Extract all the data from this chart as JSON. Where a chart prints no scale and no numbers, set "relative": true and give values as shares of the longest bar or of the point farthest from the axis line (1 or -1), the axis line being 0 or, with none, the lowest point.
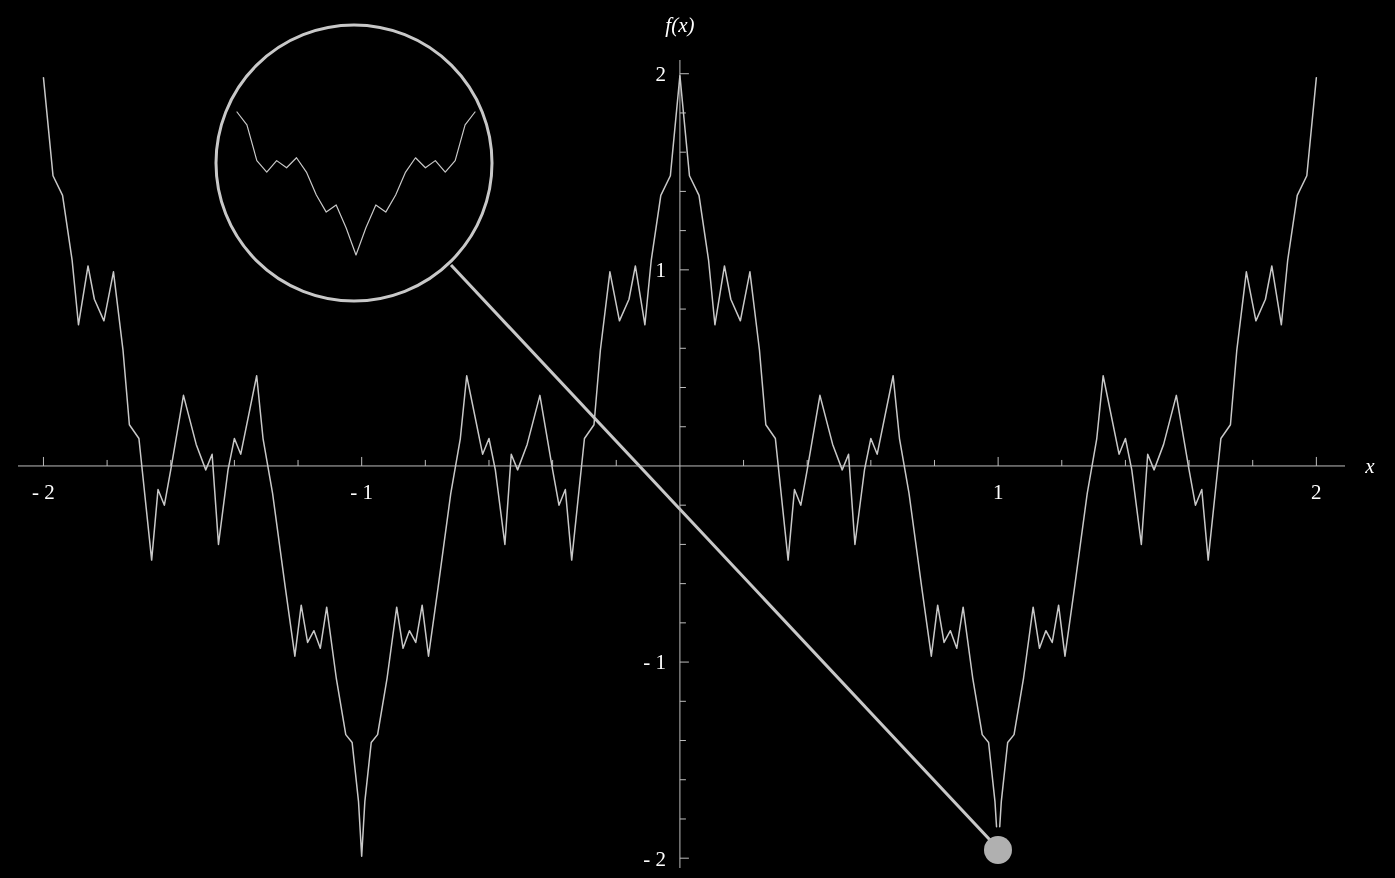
{
  "chart_data": [
    {
      "type": "line",
      "xlabel": "x",
      "ylabel": "f(x)",
      "xlim": [
        -2.08,
        2.09
      ],
      "ylim": [
        -2.05,
        2.07
      ],
      "xticks": [
        {
          "value": -2,
          "label": "- 2"
        },
        {
          "value": -1.8,
          "label": null
        },
        {
          "value": -1.6,
          "label": null
        },
        {
          "value": -1.4,
          "label": null
        },
        {
          "value": -1.2,
          "label": null
        },
        {
          "value": -1,
          "label": "- 1"
        },
        {
          "value": -0.8,
          "label": null
        },
        {
          "value": -0.6,
          "label": null
        },
        {
          "value": -0.4,
          "label": null
        },
        {
          "value": -0.2,
          "label": null
        },
        {
          "value": 0.2,
          "label": null
        },
        {
          "value": 0.4,
          "label": null
        },
        {
          "value": 0.6,
          "label": null
        },
        {
          "value": 0.8,
          "label": null
        },
        1,
        {
          "value": 1.2,
          "label": null
        },
        {
          "value": 1.4,
          "label": null
        },
        {
          "value": 1.6,
          "label": null
        },
        {
          "value": 1.8,
          "label": null
        },
        2
      ],
      "yticks": [
        {
          "value": -2,
          "label": "- 2"
        },
        {
          "value": -1.8,
          "label": null
        },
        {
          "value": -1.6,
          "label": null
        },
        {
          "value": -1.4,
          "label": null
        },
        {
          "value": -1.2,
          "label": null
        },
        {
          "value": -1,
          "label": "- 1"
        },
        {
          "value": -0.8,
          "label": null
        },
        {
          "value": -0.6,
          "label": null
        },
        {
          "value": -0.4,
          "label": null
        },
        {
          "value": -0.2,
          "label": null
        },
        {
          "value": 0.2,
          "label": null
        },
        {
          "value": 0.4,
          "label": null
        },
        {
          "value": 0.6,
          "label": null
        },
        {
          "value": 0.8,
          "label": null
        },
        1,
        {
          "value": 1.2,
          "label": null
        },
        {
          "value": 1.4,
          "label": null
        },
        {
          "value": 1.6,
          "label": null
        },
        {
          "value": 1.8,
          "label": null
        },
        2
      ],
      "series": [
        {
          "color": "#c8c8c8",
          "x": [
            -2,
            -1.97,
            -1.94,
            -1.91,
            -1.89,
            -1.86,
            -1.84,
            -1.81,
            -1.78,
            -1.75,
            -1.73,
            -1.7,
            -1.66,
            -1.64,
            -1.62,
            -1.6,
            -1.56,
            -1.52,
            -1.49,
            -1.47,
            -1.45,
            -1.42,
            -1.4,
            -1.38,
            -1.33,
            -1.31,
            -1.28,
            -1.24,
            -1.21,
            -1.19,
            -1.17,
            -1.15,
            -1.13,
            -1.11,
            -1.08,
            -1.05,
            -1.03,
            -1.01,
            -1.0,
            -0.99,
            -0.97,
            -0.95,
            -0.92,
            -0.89,
            -0.87,
            -0.85,
            -0.83,
            -0.81,
            -0.79,
            -0.76,
            -0.72,
            -0.69,
            -0.67,
            -0.62,
            -0.6,
            -0.58,
            -0.55,
            -0.53,
            -0.51,
            -0.48,
            -0.44,
            -0.4,
            -0.38,
            -0.36,
            -0.34,
            -0.3,
            -0.27,
            -0.25,
            -0.22,
            -0.19,
            -0.16,
            -0.14,
            -0.11,
            -0.09,
            -0.06,
            -0.03,
            0,
            0.03,
            0.06,
            0.09,
            0.11,
            0.14,
            0.16,
            0.19,
            0.22,
            0.25,
            0.27,
            0.3,
            0.34,
            0.36,
            0.38,
            0.4,
            0.44,
            0.48,
            0.51,
            0.53,
            0.55,
            0.58,
            0.6,
            0.62,
            0.67,
            0.69,
            0.72,
            0.76,
            0.79,
            0.81,
            0.83,
            0.85,
            0.87,
            0.89,
            0.92,
            0.95,
            0.97,
            0.99,
            0.995,
            1.0,
            1.005,
            1.01,
            1.03,
            1.05,
            1.08,
            1.11,
            1.13,
            1.15,
            1.17,
            1.19,
            1.21,
            1.24,
            1.28,
            1.31,
            1.33,
            1.38,
            1.4,
            1.42,
            1.45,
            1.47,
            1.49,
            1.52,
            1.56,
            1.6,
            1.62,
            1.64,
            1.66,
            1.7,
            1.73,
            1.75,
            1.78,
            1.81,
            1.84,
            1.86,
            1.89,
            1.91,
            1.94,
            1.97,
            2
          ],
          "values": [
            1.98,
            1.48,
            1.38,
            1.05,
            0.72,
            1.02,
            0.85,
            0.74,
            0.99,
            0.59,
            0.21,
            0.14,
            -0.48,
            -0.12,
            -0.2,
            -0.02,
            0.36,
            0.11,
            -0.02,
            0.06,
            -0.4,
            -0.02,
            0.14,
            0.06,
            0.46,
            0.14,
            -0.14,
            -0.62,
            -0.97,
            -0.71,
            -0.9,
            -0.84,
            -0.93,
            -0.72,
            -1.08,
            -1.37,
            -1.41,
            -1.71,
            -1.99,
            -1.71,
            -1.41,
            -1.37,
            -1.08,
            -0.72,
            -0.93,
            -0.84,
            -0.9,
            -0.71,
            -0.97,
            -0.62,
            -0.14,
            0.14,
            0.46,
            0.06,
            0.14,
            -0.02,
            -0.4,
            0.06,
            -0.02,
            0.11,
            0.36,
            -0.02,
            -0.2,
            -0.12,
            -0.48,
            0.14,
            0.21,
            0.59,
            0.99,
            0.74,
            0.85,
            1.02,
            0.72,
            1.05,
            1.38,
            1.48,
            1.99,
            1.48,
            1.38,
            1.05,
            0.72,
            1.02,
            0.85,
            0.74,
            0.99,
            0.59,
            0.21,
            0.14,
            -0.48,
            -0.12,
            -0.2,
            -0.02,
            0.36,
            0.11,
            -0.02,
            0.06,
            -0.4,
            -0.02,
            0.14,
            0.06,
            0.46,
            0.14,
            -0.14,
            -0.62,
            -0.97,
            -0.71,
            -0.9,
            -0.84,
            -0.93,
            -0.72,
            -1.08,
            -1.37,
            -1.41,
            -1.71,
            -1.84,
            null,
            -1.84,
            -1.71,
            -1.41,
            -1.37,
            -1.08,
            -0.72,
            -0.93,
            -0.84,
            -0.9,
            -0.71,
            -0.97,
            -0.62,
            -0.14,
            0.14,
            0.46,
            0.06,
            0.14,
            -0.02,
            -0.4,
            0.06,
            -0.02,
            0.11,
            0.36,
            -0.02,
            -0.2,
            -0.12,
            -0.48,
            0.14,
            0.21,
            0.59,
            0.99,
            0.74,
            0.85,
            1.02,
            0.72,
            1.05,
            1.38,
            1.48,
            1.98
          ]
        }
      ]
    },
    {
      "type": "line",
      "relative": true,
      "categories": [
        null,
        null,
        null,
        null,
        null,
        null,
        null,
        null,
        null,
        null,
        null,
        null,
        null,
        null,
        null,
        null,
        null,
        null,
        null,
        null,
        null,
        null,
        null,
        null,
        null
      ],
      "series": [
        {
          "color": "#c8c8c8",
          "values": [
            1.0,
            0.91,
            0.66,
            0.58,
            0.66,
            0.61,
            0.68,
            0.58,
            0.42,
            0.3,
            0.35,
            0.19,
            0,
            0.19,
            0.35,
            0.3,
            0.42,
            0.58,
            0.68,
            0.61,
            0.66,
            0.58,
            0.66,
            0.91,
            1.0
          ]
        }
      ]
    }
  ]
}
